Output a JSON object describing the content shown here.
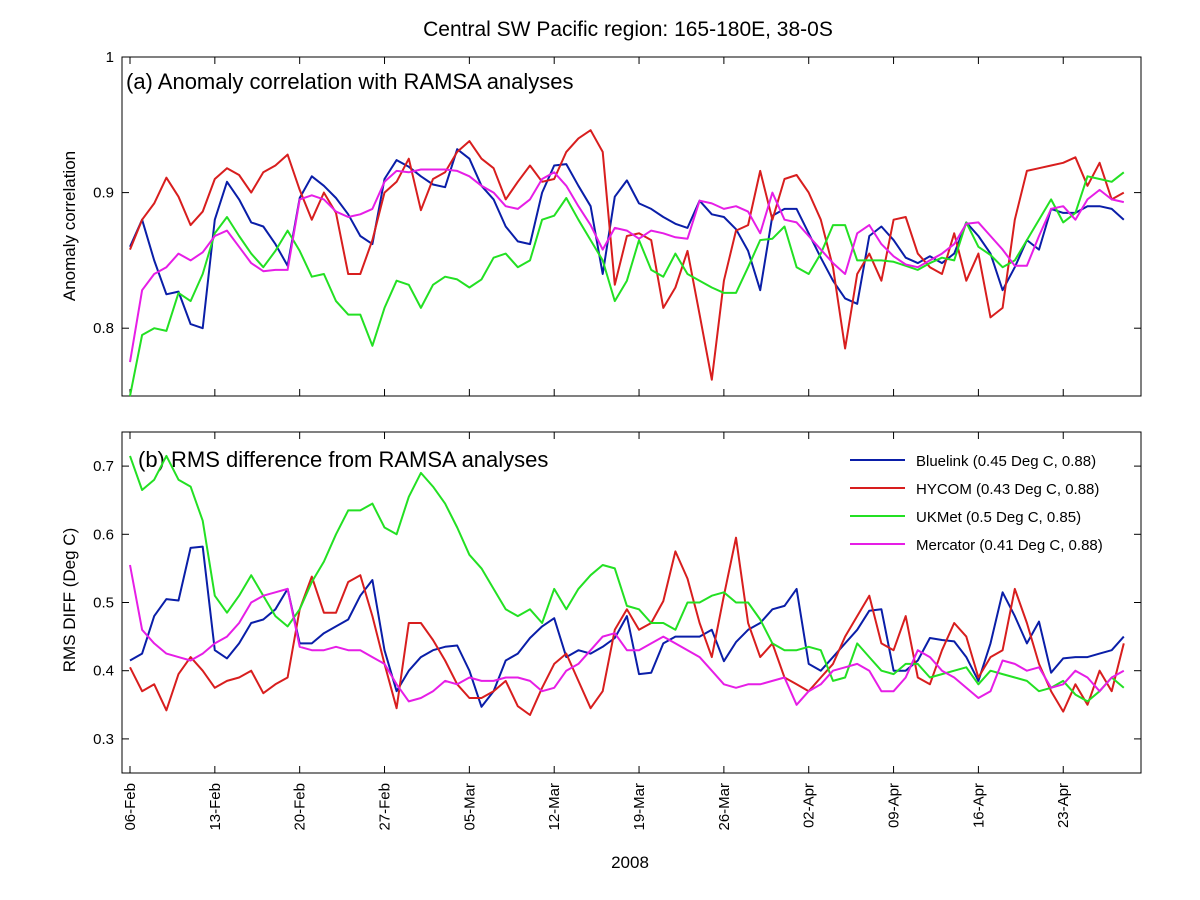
{
  "figure": {
    "title": "Central SW Pacific region: 165-180E, 38-0S",
    "xlabel": "2008",
    "x_ticks": [
      "06-Feb",
      "13-Feb",
      "20-Feb",
      "27-Feb",
      "05-Mar",
      "12-Mar",
      "19-Mar",
      "26-Mar",
      "02-Apr",
      "09-Apr",
      "16-Apr",
      "23-Apr"
    ]
  },
  "series_colors": {
    "Bluelink": "#0a1ea8",
    "HYCOM": "#d81e1e",
    "UKMet": "#23e023",
    "Mercator": "#e61ee6"
  },
  "chart_data": [
    {
      "type": "line",
      "panel": "a",
      "title": "(a) Anomaly correlation with RAMSA analyses",
      "xlabel": "",
      "ylabel": "Anomaly correlation",
      "ylim": [
        0.75,
        1.0
      ],
      "y_ticks": [
        0.8,
        0.9,
        1
      ],
      "x_axis": "day index from 06-Feb (daily, 0-82)",
      "grid": false,
      "series": [
        {
          "name": "Bluelink",
          "values": [
            0.86,
            0.88,
            0.85,
            0.825,
            0.827,
            0.803,
            0.8,
            0.88,
            0.908,
            0.895,
            0.878,
            0.875,
            0.862,
            0.846,
            0.896,
            0.912,
            0.905,
            0.896,
            0.884,
            0.868,
            0.862,
            0.91,
            0.924,
            0.919,
            0.912,
            0.906,
            0.904,
            0.932,
            0.925,
            0.905,
            0.895,
            0.875,
            0.864,
            0.862,
            0.9,
            0.92,
            0.921,
            0.905,
            0.89,
            0.84,
            0.897,
            0.909,
            0.892,
            0.888,
            0.882,
            0.877,
            0.874,
            0.894,
            0.884,
            0.882,
            0.873,
            0.857,
            0.828,
            0.883,
            0.888,
            0.888,
            0.87,
            0.852,
            0.835,
            0.822,
            0.818,
            0.868,
            0.875,
            0.865,
            0.852,
            0.848,
            0.853,
            0.848,
            0.855,
            0.878,
            0.868,
            0.855,
            0.828,
            0.845,
            0.865,
            0.858,
            0.888,
            0.885,
            0.885,
            0.89,
            0.89,
            0.888,
            0.88
          ]
        },
        {
          "name": "HYCOM",
          "values": [
            0.858,
            0.88,
            0.892,
            0.911,
            0.897,
            0.876,
            0.886,
            0.91,
            0.918,
            0.913,
            0.9,
            0.915,
            0.92,
            0.928,
            0.902,
            0.88,
            0.9,
            0.885,
            0.84,
            0.84,
            0.865,
            0.9,
            0.908,
            0.925,
            0.887,
            0.91,
            0.915,
            0.93,
            0.938,
            0.925,
            0.918,
            0.895,
            0.908,
            0.92,
            0.908,
            0.91,
            0.93,
            0.94,
            0.946,
            0.93,
            0.832,
            0.868,
            0.87,
            0.865,
            0.815,
            0.83,
            0.857,
            0.81,
            0.762,
            0.835,
            0.872,
            0.876,
            0.916,
            0.88,
            0.91,
            0.913,
            0.9,
            0.88,
            0.845,
            0.785,
            0.84,
            0.855,
            0.835,
            0.88,
            0.882,
            0.855,
            0.845,
            0.84,
            0.87,
            0.835,
            0.855,
            0.808,
            0.815,
            0.88,
            0.916,
            0.918,
            0.92,
            0.922,
            0.926,
            0.905,
            0.922,
            0.895,
            0.9
          ]
        },
        {
          "name": "UKMet",
          "values": [
            0.75,
            0.795,
            0.8,
            0.798,
            0.826,
            0.82,
            0.84,
            0.87,
            0.882,
            0.868,
            0.855,
            0.845,
            0.857,
            0.872,
            0.857,
            0.838,
            0.84,
            0.82,
            0.81,
            0.81,
            0.787,
            0.815,
            0.835,
            0.832,
            0.815,
            0.832,
            0.838,
            0.836,
            0.83,
            0.836,
            0.852,
            0.855,
            0.845,
            0.85,
            0.88,
            0.883,
            0.896,
            0.88,
            0.865,
            0.85,
            0.82,
            0.835,
            0.865,
            0.843,
            0.838,
            0.855,
            0.84,
            0.835,
            0.83,
            0.826,
            0.826,
            0.845,
            0.865,
            0.866,
            0.875,
            0.845,
            0.84,
            0.855,
            0.876,
            0.876,
            0.85,
            0.85,
            0.85,
            0.849,
            0.846,
            0.843,
            0.848,
            0.852,
            0.85,
            0.878,
            0.86,
            0.854,
            0.845,
            0.85,
            0.865,
            0.88,
            0.895,
            0.878,
            0.885,
            0.912,
            0.91,
            0.908,
            0.915
          ]
        },
        {
          "name": "Mercator",
          "values": [
            0.775,
            0.828,
            0.84,
            0.845,
            0.855,
            0.85,
            0.856,
            0.868,
            0.872,
            0.86,
            0.848,
            0.842,
            0.843,
            0.843,
            0.895,
            0.898,
            0.895,
            0.886,
            0.882,
            0.884,
            0.888,
            0.908,
            0.916,
            0.915,
            0.917,
            0.917,
            0.917,
            0.916,
            0.912,
            0.905,
            0.9,
            0.89,
            0.888,
            0.895,
            0.91,
            0.915,
            0.905,
            0.89,
            0.876,
            0.858,
            0.874,
            0.872,
            0.866,
            0.872,
            0.87,
            0.867,
            0.866,
            0.894,
            0.892,
            0.888,
            0.89,
            0.886,
            0.87,
            0.9,
            0.88,
            0.878,
            0.868,
            0.858,
            0.848,
            0.84,
            0.87,
            0.876,
            0.862,
            0.853,
            0.847,
            0.845,
            0.85,
            0.855,
            0.862,
            0.877,
            0.878,
            0.868,
            0.858,
            0.846,
            0.846,
            0.868,
            0.888,
            0.89,
            0.88,
            0.895,
            0.902,
            0.895,
            0.893
          ]
        }
      ]
    },
    {
      "type": "line",
      "panel": "b",
      "title": "(b) RMS difference from RAMSA analyses",
      "xlabel": "2008",
      "ylabel": "RMS DIFF (Deg C)",
      "ylim": [
        0.25,
        0.75
      ],
      "y_ticks": [
        0.3,
        0.4,
        0.5,
        0.6,
        0.7
      ],
      "x_axis": "day index from 06-Feb (daily, 0-82)",
      "grid": false,
      "legend_position": "top-right",
      "legend": [
        "Bluelink (0.45 Deg C, 0.88)",
        "HYCOM (0.43 Deg C, 0.88)",
        "UKMet (0.5 Deg C, 0.85)",
        "Mercator (0.41 Deg C, 0.88)"
      ],
      "series": [
        {
          "name": "Bluelink",
          "values": [
            0.415,
            0.425,
            0.48,
            0.505,
            0.503,
            0.58,
            0.582,
            0.43,
            0.418,
            0.44,
            0.47,
            0.475,
            0.49,
            0.52,
            0.44,
            0.44,
            0.455,
            0.465,
            0.475,
            0.51,
            0.533,
            0.43,
            0.37,
            0.4,
            0.42,
            0.43,
            0.435,
            0.437,
            0.4,
            0.347,
            0.37,
            0.415,
            0.425,
            0.448,
            0.465,
            0.477,
            0.42,
            0.43,
            0.425,
            0.435,
            0.448,
            0.48,
            0.395,
            0.397,
            0.44,
            0.45,
            0.45,
            0.45,
            0.46,
            0.414,
            0.442,
            0.46,
            0.47,
            0.49,
            0.495,
            0.52,
            0.41,
            0.4,
            0.42,
            0.44,
            0.46,
            0.488,
            0.49,
            0.4,
            0.4,
            0.415,
            0.448,
            0.445,
            0.443,
            0.42,
            0.385,
            0.44,
            0.515,
            0.48,
            0.44,
            0.472,
            0.397,
            0.418,
            0.42,
            0.42,
            0.425,
            0.43,
            0.45
          ]
        },
        {
          "name": "HYCOM",
          "values": [
            0.405,
            0.37,
            0.38,
            0.342,
            0.395,
            0.42,
            0.4,
            0.375,
            0.385,
            0.39,
            0.4,
            0.367,
            0.38,
            0.39,
            0.49,
            0.538,
            0.485,
            0.485,
            0.53,
            0.54,
            0.48,
            0.41,
            0.345,
            0.47,
            0.47,
            0.445,
            0.415,
            0.38,
            0.36,
            0.36,
            0.37,
            0.385,
            0.348,
            0.335,
            0.375,
            0.41,
            0.425,
            0.385,
            0.345,
            0.37,
            0.46,
            0.49,
            0.46,
            0.47,
            0.502,
            0.575,
            0.535,
            0.47,
            0.42,
            0.51,
            0.595,
            0.47,
            0.42,
            0.44,
            0.39,
            0.38,
            0.37,
            0.39,
            0.41,
            0.45,
            0.48,
            0.51,
            0.44,
            0.43,
            0.48,
            0.39,
            0.38,
            0.43,
            0.47,
            0.45,
            0.39,
            0.42,
            0.43,
            0.52,
            0.47,
            0.41,
            0.37,
            0.34,
            0.38,
            0.35,
            0.4,
            0.37,
            0.44
          ]
        },
        {
          "name": "UKMet",
          "values": [
            0.715,
            0.665,
            0.68,
            0.715,
            0.68,
            0.67,
            0.62,
            0.51,
            0.485,
            0.51,
            0.54,
            0.51,
            0.48,
            0.465,
            0.49,
            0.53,
            0.56,
            0.6,
            0.635,
            0.635,
            0.645,
            0.61,
            0.6,
            0.655,
            0.69,
            0.67,
            0.645,
            0.61,
            0.57,
            0.55,
            0.52,
            0.49,
            0.48,
            0.49,
            0.47,
            0.52,
            0.49,
            0.52,
            0.54,
            0.555,
            0.55,
            0.495,
            0.49,
            0.47,
            0.47,
            0.46,
            0.5,
            0.5,
            0.51,
            0.515,
            0.5,
            0.5,
            0.475,
            0.44,
            0.43,
            0.43,
            0.435,
            0.43,
            0.385,
            0.39,
            0.44,
            0.42,
            0.4,
            0.395,
            0.41,
            0.41,
            0.39,
            0.395,
            0.4,
            0.405,
            0.38,
            0.4,
            0.395,
            0.39,
            0.385,
            0.37,
            0.375,
            0.385,
            0.365,
            0.355,
            0.37,
            0.39,
            0.375
          ]
        },
        {
          "name": "Mercator",
          "values": [
            0.555,
            0.46,
            0.44,
            0.425,
            0.42,
            0.415,
            0.425,
            0.44,
            0.45,
            0.47,
            0.5,
            0.51,
            0.515,
            0.52,
            0.435,
            0.43,
            0.43,
            0.435,
            0.43,
            0.43,
            0.42,
            0.41,
            0.38,
            0.355,
            0.36,
            0.37,
            0.385,
            0.38,
            0.39,
            0.385,
            0.385,
            0.39,
            0.39,
            0.385,
            0.37,
            0.375,
            0.4,
            0.41,
            0.43,
            0.45,
            0.455,
            0.43,
            0.43,
            0.44,
            0.45,
            0.44,
            0.43,
            0.42,
            0.4,
            0.38,
            0.375,
            0.38,
            0.38,
            0.385,
            0.39,
            0.35,
            0.37,
            0.38,
            0.4,
            0.405,
            0.41,
            0.4,
            0.37,
            0.37,
            0.39,
            0.43,
            0.42,
            0.4,
            0.39,
            0.375,
            0.36,
            0.37,
            0.415,
            0.41,
            0.4,
            0.405,
            0.375,
            0.38,
            0.4,
            0.39,
            0.37,
            0.39,
            0.4
          ]
        }
      ]
    }
  ]
}
